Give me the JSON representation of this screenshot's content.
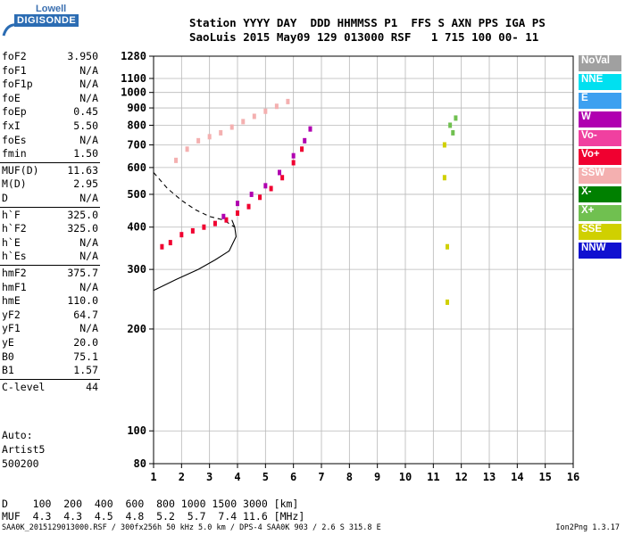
{
  "logo": {
    "top": "Lowell",
    "bottom": "DIGISONDE"
  },
  "header": {
    "line1": "Station YYYY DAY  DDD HHMMSS P1  FFS S AXN PPS IGA PS",
    "line2": "SaoLuis 2015 May09 129 013000 RSF   1 715 100 00- 11"
  },
  "params": [
    {
      "label": "foF2",
      "value": "3.950"
    },
    {
      "label": "foF1",
      "value": "N/A"
    },
    {
      "label": "foF1p",
      "value": "N/A"
    },
    {
      "label": "foE",
      "value": "N/A"
    },
    {
      "label": "foEp",
      "value": "0.45"
    },
    {
      "label": "fxI",
      "value": "5.50"
    },
    {
      "label": "foEs",
      "value": "N/A"
    },
    {
      "label": "fmin",
      "value": "1.50"
    },
    {
      "label": "MUF(D)",
      "value": "11.63"
    },
    {
      "label": "M(D)",
      "value": "2.95"
    },
    {
      "label": "D",
      "value": "N/A"
    },
    {
      "label": "h`F",
      "value": "325.0"
    },
    {
      "label": "h`F2",
      "value": "325.0"
    },
    {
      "label": "h`E",
      "value": "N/A"
    },
    {
      "label": "h`Es",
      "value": "N/A"
    },
    {
      "label": "hmF2",
      "value": "375.7"
    },
    {
      "label": "hmF1",
      "value": "N/A"
    },
    {
      "label": "hmE",
      "value": "110.0"
    },
    {
      "label": "yF2",
      "value": "64.7"
    },
    {
      "label": "yF1",
      "value": "N/A"
    },
    {
      "label": "yE",
      "value": "20.0"
    },
    {
      "label": "B0",
      "value": "75.1"
    },
    {
      "label": "B1",
      "value": "1.57"
    },
    {
      "label": "C-level",
      "value": "44"
    }
  ],
  "auto": [
    "Auto:",
    "Artist5",
    "500200"
  ],
  "legend": [
    {
      "label": "NoVal",
      "color": "#a0a0a0"
    },
    {
      "label": "NNE",
      "color": "#00e0f0"
    },
    {
      "label": "E",
      "color": "#3ca0f0"
    },
    {
      "label": "W",
      "color": "#b000b0"
    },
    {
      "label": "Vo-",
      "color": "#f040a0"
    },
    {
      "label": "Vo+",
      "color": "#f00030"
    },
    {
      "label": "SSW",
      "color": "#f4b0b0"
    },
    {
      "label": "X-",
      "color": "#008000"
    },
    {
      "label": "X+",
      "color": "#70c050"
    },
    {
      "label": "SSE",
      "color": "#d0d000"
    },
    {
      "label": "NNW",
      "color": "#1010d0"
    }
  ],
  "chart_data": {
    "type": "scatter",
    "xlabel": "",
    "ylabel": "",
    "xlim": [
      1,
      16
    ],
    "ylim": [
      80,
      1280
    ],
    "yscale": "log",
    "grid": true,
    "x_ticks": [
      "1",
      "2",
      "3",
      "4",
      "5",
      "6",
      "7",
      "8",
      "9",
      "10",
      "11",
      "12",
      "13",
      "14",
      "15",
      "16"
    ],
    "y_ticks": [
      "80",
      "100",
      "200",
      "300",
      "400",
      "500",
      "600",
      "700",
      "800",
      "900",
      "1000",
      "1100",
      "1280"
    ],
    "series": [
      {
        "color": "#f4b0b0",
        "points": [
          [
            1.8,
            630
          ],
          [
            2.2,
            680
          ],
          [
            2.6,
            720
          ],
          [
            3.0,
            740
          ],
          [
            3.4,
            760
          ],
          [
            3.8,
            790
          ],
          [
            4.2,
            820
          ],
          [
            4.6,
            850
          ],
          [
            5.0,
            880
          ],
          [
            5.4,
            910
          ],
          [
            5.8,
            940
          ]
        ]
      },
      {
        "color": "#f00030",
        "points": [
          [
            1.3,
            350
          ],
          [
            1.6,
            360
          ],
          [
            2.0,
            380
          ],
          [
            2.4,
            390
          ],
          [
            2.8,
            400
          ],
          [
            3.2,
            410
          ],
          [
            3.6,
            420
          ],
          [
            4.0,
            440
          ],
          [
            4.4,
            460
          ],
          [
            4.8,
            490
          ],
          [
            5.2,
            520
          ],
          [
            5.6,
            560
          ],
          [
            6.0,
            620
          ],
          [
            6.3,
            680
          ]
        ]
      },
      {
        "color": "#b000b0",
        "points": [
          [
            3.5,
            430
          ],
          [
            4.0,
            470
          ],
          [
            4.5,
            500
          ],
          [
            5.0,
            530
          ],
          [
            5.5,
            580
          ],
          [
            6.0,
            650
          ],
          [
            6.4,
            720
          ],
          [
            6.6,
            780
          ]
        ]
      },
      {
        "color": "#70c050",
        "points": [
          [
            11.6,
            800
          ],
          [
            11.7,
            760
          ],
          [
            11.8,
            840
          ]
        ]
      },
      {
        "color": "#d0d000",
        "points": [
          [
            11.4,
            560
          ],
          [
            11.5,
            350
          ],
          [
            11.5,
            240
          ],
          [
            11.4,
            700
          ]
        ]
      }
    ],
    "curves": [
      {
        "style": "solid",
        "points": [
          [
            1.0,
            260
          ],
          [
            1.8,
            280
          ],
          [
            2.6,
            300
          ],
          [
            3.2,
            320
          ],
          [
            3.7,
            340
          ],
          [
            3.95,
            375
          ],
          [
            3.9,
            400
          ],
          [
            3.8,
            420
          ]
        ]
      },
      {
        "style": "dashed",
        "points": [
          [
            1.0,
            580
          ],
          [
            1.5,
            520
          ],
          [
            2.0,
            480
          ],
          [
            2.5,
            450
          ],
          [
            3.0,
            430
          ],
          [
            3.5,
            420
          ],
          [
            3.9,
            400
          ]
        ]
      }
    ]
  },
  "muf_table": {
    "d_label": "D",
    "d_values": "100  200  400  600  800 1000 1500 3000 [km]",
    "m_label": "MUF",
    "m_values": "4.3  4.3  4.5  4.8  5.2  5.7  7.4 11.6 [MHz]"
  },
  "footer": "SAA0K_2015129013000.RSF / 300fx256h 50 kHz 5.0 km / DPS-4 SAA0K 903 / 2.6 S 315.8 E",
  "version": "Ion2Png 1.3.17"
}
